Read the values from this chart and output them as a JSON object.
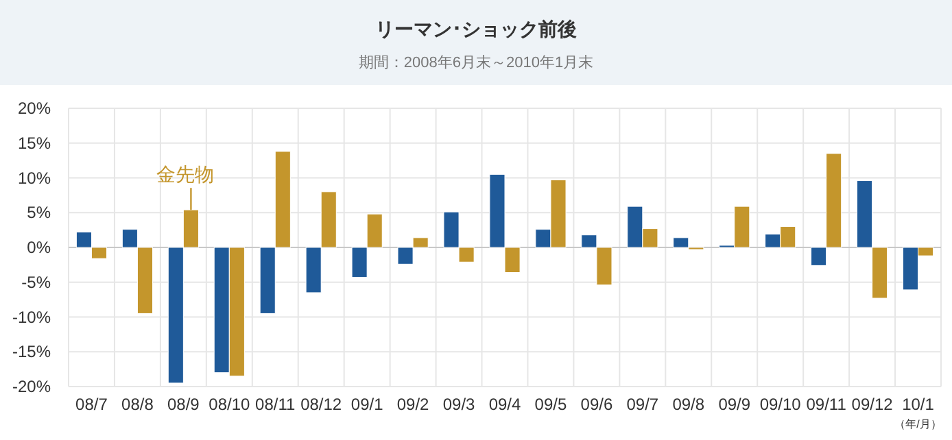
{
  "chart_data": {
    "type": "bar",
    "title": "リーマン･ショック前後",
    "subtitle": "期間：2008年6月末～2010年1月末",
    "xlabel": "（年/月）",
    "categories": [
      "08/7",
      "08/8",
      "08/9",
      "08/10",
      "08/11",
      "08/12",
      "09/1",
      "09/2",
      "09/3",
      "09/4",
      "09/5",
      "09/6",
      "09/7",
      "09/8",
      "09/9",
      "09/10",
      "09/11",
      "09/12",
      "10/1"
    ],
    "series": [
      {
        "color": "#1f5a99",
        "values": [
          2.2,
          2.6,
          -19.5,
          -18.0,
          -9.5,
          -6.5,
          -4.3,
          -2.4,
          5.1,
          10.5,
          2.6,
          1.8,
          5.9,
          1.4,
          0.3,
          1.9,
          -2.6,
          9.6,
          -6.1
        ]
      },
      {
        "name": "金先物",
        "color": "#c4962c",
        "values": [
          -1.6,
          -9.5,
          5.4,
          -18.5,
          13.8,
          8.0,
          4.8,
          1.4,
          -2.1,
          -3.6,
          9.7,
          -5.4,
          2.7,
          -0.3,
          5.9,
          3.0,
          13.5,
          -7.3,
          -1.2
        ]
      }
    ],
    "ylim": [
      -20,
      20
    ],
    "yticks": [
      {
        "value": -20,
        "label": "-20%"
      },
      {
        "value": -15,
        "label": "-15%"
      },
      {
        "value": -10,
        "label": "-10%"
      },
      {
        "value": -5,
        "label": "-5%"
      },
      {
        "value": 0,
        "label": "0%"
      },
      {
        "value": 5,
        "label": "5%"
      },
      {
        "value": 10,
        "label": "10%"
      },
      {
        "value": 15,
        "label": "15%"
      },
      {
        "value": 20,
        "label": "20%"
      }
    ],
    "grid": true
  }
}
